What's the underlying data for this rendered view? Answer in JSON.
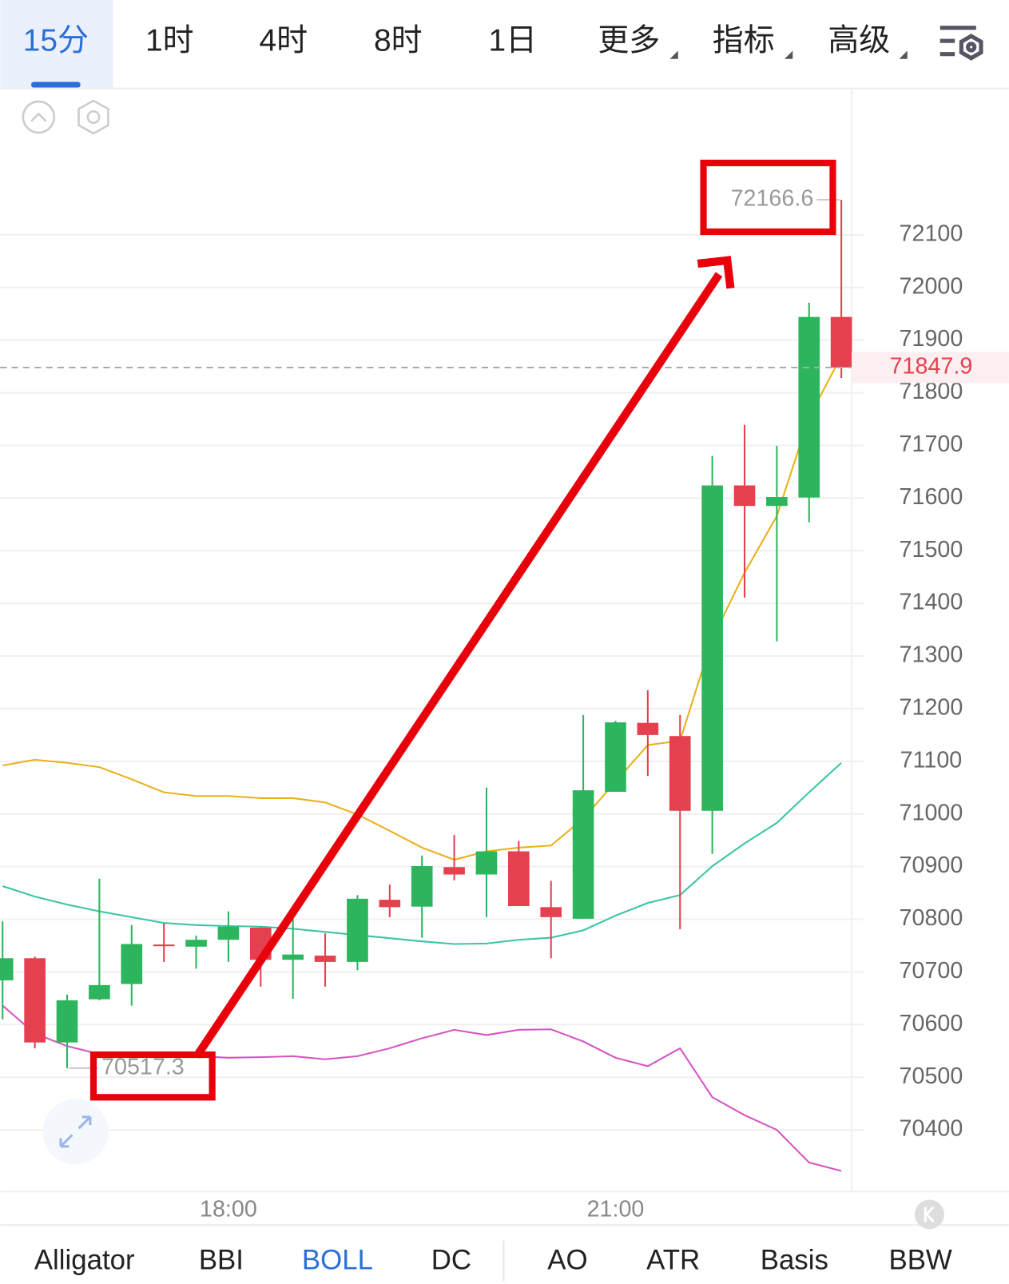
{
  "toolbar": {
    "tabs": [
      "15分",
      "1时",
      "4时",
      "8时",
      "1日",
      "更多",
      "指标",
      "高级"
    ]
  },
  "chart_data": {
    "type": "candlestick",
    "categories": [
      null,
      null,
      null,
      null,
      null,
      null,
      null,
      "18:00",
      null,
      null,
      null,
      null,
      null,
      null,
      null,
      null,
      null,
      null,
      null,
      "21:00",
      null,
      null,
      null,
      null,
      null,
      null,
      null
    ],
    "open": [
      70684,
      70726,
      70566,
      70648,
      70677,
      70752,
      70748,
      70761,
      70784,
      70723,
      70731,
      70719,
      70837,
      70824,
      70899,
      70885,
      70929,
      70823,
      70801,
      71042,
      71173,
      71148,
      71006,
      71624,
      71585,
      71601,
      71944
    ],
    "high": [
      70796,
      70729,
      70657,
      70877,
      70789,
      70792,
      70769,
      70815,
      70785,
      70801,
      70773,
      70846,
      70866,
      70921,
      70960,
      71050,
      70949,
      70873,
      71188,
      71177,
      71235,
      71188,
      71680,
      71739,
      71699,
      71971,
      72166.6
    ],
    "low": [
      70610,
      70555,
      70517.3,
      70646,
      70636,
      70719,
      70706,
      70719,
      70672,
      70649,
      70672,
      70703,
      70804,
      70765,
      70874,
      70804,
      70825,
      70726,
      70801,
      71042,
      71072,
      70781,
      70924,
      71411,
      71328,
      71554,
      71828
    ],
    "close": [
      70726,
      70566,
      70646,
      70675,
      70753,
      70749,
      70761,
      70786,
      70723,
      70733,
      70719,
      70839,
      70823,
      70901,
      70885,
      70929,
      70825,
      70804,
      71045,
      71174,
      71150,
      71006,
      71624,
      71585,
      71602,
      71944,
      71847.9
    ],
    "up_color": "#2db55d",
    "down_color": "#e5404f",
    "lines": [
      {
        "color": "#eab01a",
        "values": [
          71092,
          71103,
          71097,
          71089,
          71066,
          71041,
          71034,
          71034,
          71030,
          71030,
          71022,
          70999,
          70968,
          70936,
          70913,
          70929,
          70936,
          70940,
          70991,
          71061,
          71131,
          71139,
          71333,
          71458,
          71566,
          71753,
          71870
        ]
      },
      {
        "color": "#3cc3a6",
        "values": [
          70863,
          70843,
          70828,
          70815,
          70804,
          70793,
          70789,
          70787,
          70786,
          70782,
          70776,
          70770,
          70764,
          70758,
          70753,
          70754,
          70761,
          70765,
          70779,
          70807,
          70831,
          70846,
          70901,
          70944,
          70983,
          71041,
          71097
        ]
      },
      {
        "color": "#d653c1",
        "values": [
          70636,
          70583,
          70559,
          70544,
          70540,
          70540,
          70540,
          70537,
          70538,
          70540,
          70534,
          70540,
          70555,
          70574,
          70590,
          70580,
          70590,
          70591,
          70568,
          70537,
          70521,
          70555,
          70462,
          70428,
          70400,
          70338,
          70322
        ]
      }
    ],
    "ylim": [
      70283,
      72378
    ],
    "yticks": [
      70400,
      70500,
      70600,
      70700,
      70800,
      70900,
      71000,
      71100,
      71200,
      71300,
      71400,
      71500,
      71600,
      71700,
      71800,
      71900,
      72000,
      72100
    ],
    "grid": true
  },
  "indicators": [
    "Alligator",
    "BBI",
    "BOLL",
    "DC",
    "AO",
    "ATR",
    "Basis",
    "BBW"
  ]
}
